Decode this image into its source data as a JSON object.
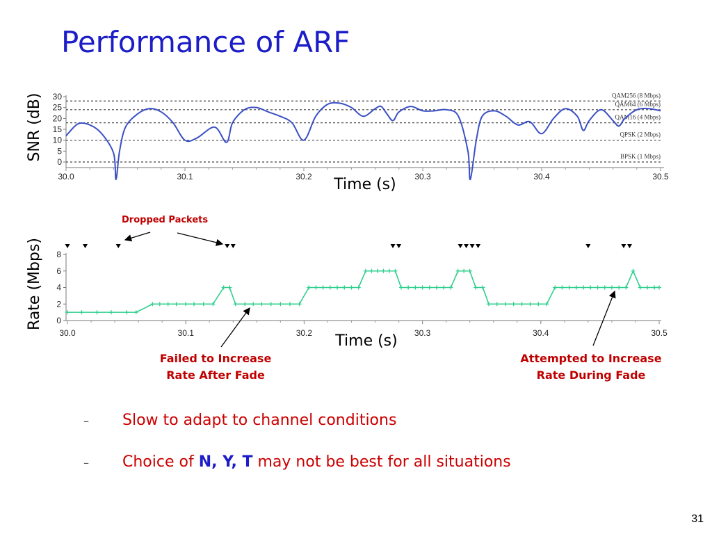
{
  "slide": {
    "title": "Performance of ARF",
    "page_number": "31",
    "bullets": [
      {
        "text": "Slow to adapt to channel conditions"
      },
      {
        "prefix": "Choice of ",
        "n": "N",
        "sep1": ", ",
        "y": "Y",
        "sep2": ", ",
        "t": "T",
        "suffix": " may not be best for all situations"
      }
    ]
  },
  "annotations": {
    "dropped": "Dropped Packets",
    "failed_line1": "Failed to Increase",
    "failed_line2": "Rate After Fade",
    "attempted_line1": "Attempted to Increase",
    "attempted_line2": "Rate During Fade"
  },
  "chart_data": [
    {
      "type": "line",
      "ylabel": "SNR (dB)",
      "xlabel": "Time (s)",
      "xlim": [
        30.0,
        30.5
      ],
      "ylim": [
        0,
        30
      ],
      "x_ticks": [
        "30.0",
        "30.1",
        "30.2",
        "30.3",
        "30.4",
        "30.5"
      ],
      "y_ticks": [
        "0",
        "5",
        "10",
        "15",
        "20",
        "25",
        "30"
      ],
      "series_color": "#3a4fc4",
      "thresholds": [
        {
          "label": "QAM256 (8 Mbps)",
          "value": 28
        },
        {
          "label": "QAM64 (6 Mbps)",
          "value": 24
        },
        {
          "label": "QAM16 (4 Mbps)",
          "value": 18
        },
        {
          "label": "QPSK (2 Mbps)",
          "value": 10
        },
        {
          "label": "BPSK (1 Mbps)",
          "value": 0
        }
      ],
      "points": [
        [
          30.0,
          12
        ],
        [
          30.01,
          17.5
        ],
        [
          30.02,
          17
        ],
        [
          30.03,
          13
        ],
        [
          30.04,
          4
        ],
        [
          30.042,
          -8
        ],
        [
          30.045,
          5
        ],
        [
          30.05,
          16
        ],
        [
          30.06,
          22
        ],
        [
          30.07,
          24.5
        ],
        [
          30.08,
          23
        ],
        [
          30.09,
          18
        ],
        [
          30.1,
          10
        ],
        [
          30.11,
          11
        ],
        [
          30.125,
          16
        ],
        [
          30.135,
          9
        ],
        [
          30.14,
          18
        ],
        [
          30.15,
          24
        ],
        [
          30.16,
          25
        ],
        [
          30.17,
          23
        ],
        [
          30.18,
          21
        ],
        [
          30.19,
          18
        ],
        [
          30.2,
          10
        ],
        [
          30.21,
          21
        ],
        [
          30.22,
          26.5
        ],
        [
          30.23,
          27
        ],
        [
          30.24,
          25
        ],
        [
          30.25,
          21
        ],
        [
          30.26,
          24.5
        ],
        [
          30.265,
          25.5
        ],
        [
          30.27,
          22
        ],
        [
          30.275,
          19
        ],
        [
          30.28,
          23
        ],
        [
          30.29,
          25.5
        ],
        [
          30.3,
          23.5
        ],
        [
          30.31,
          23.5
        ],
        [
          30.32,
          24
        ],
        [
          30.33,
          21
        ],
        [
          30.338,
          5
        ],
        [
          30.34,
          -8
        ],
        [
          30.345,
          10
        ],
        [
          30.35,
          21
        ],
        [
          30.36,
          23.5
        ],
        [
          30.37,
          21
        ],
        [
          30.38,
          17
        ],
        [
          30.39,
          18.5
        ],
        [
          30.4,
          13
        ],
        [
          30.41,
          20
        ],
        [
          30.42,
          24.5
        ],
        [
          30.43,
          21
        ],
        [
          30.435,
          14.5
        ],
        [
          30.44,
          19
        ],
        [
          30.45,
          24
        ],
        [
          30.46,
          19
        ],
        [
          30.465,
          16.5
        ],
        [
          30.47,
          20
        ],
        [
          30.48,
          24
        ],
        [
          30.49,
          24.5
        ],
        [
          30.5,
          23.5
        ]
      ]
    },
    {
      "type": "line",
      "ylabel": "Rate (Mbps)",
      "xlabel": "Time (s)",
      "xlim": [
        30.0,
        30.5
      ],
      "ylim": [
        0,
        8
      ],
      "x_ticks": [
        "30.0",
        "30.1",
        "30.2",
        "30.3",
        "30.4",
        "30.5"
      ],
      "y_ticks": [
        "0",
        "2",
        "4",
        "6",
        "8"
      ],
      "series_color": "#2ecf8e",
      "steps": [
        [
          30.0,
          1
        ],
        [
          30.012,
          1
        ],
        [
          30.025,
          1
        ],
        [
          30.037,
          1
        ],
        [
          30.05,
          1
        ],
        [
          30.058,
          1
        ],
        [
          30.072,
          2
        ],
        [
          30.078,
          2
        ],
        [
          30.085,
          2
        ],
        [
          30.092,
          2
        ],
        [
          30.1,
          2
        ],
        [
          30.107,
          2
        ],
        [
          30.115,
          2
        ],
        [
          30.123,
          2
        ],
        [
          30.132,
          4
        ],
        [
          30.137,
          4
        ],
        [
          30.142,
          2
        ],
        [
          30.15,
          2
        ],
        [
          30.157,
          2
        ],
        [
          30.164,
          2
        ],
        [
          30.172,
          2
        ],
        [
          30.18,
          2
        ],
        [
          30.188,
          2
        ],
        [
          30.196,
          2
        ],
        [
          30.204,
          4
        ],
        [
          30.21,
          4
        ],
        [
          30.216,
          4
        ],
        [
          30.222,
          4
        ],
        [
          30.228,
          4
        ],
        [
          30.234,
          4
        ],
        [
          30.24,
          4
        ],
        [
          30.246,
          4
        ],
        [
          30.252,
          6
        ],
        [
          30.257,
          6
        ],
        [
          30.262,
          6
        ],
        [
          30.267,
          6
        ],
        [
          30.272,
          6
        ],
        [
          30.277,
          6
        ],
        [
          30.282,
          4
        ],
        [
          30.288,
          4
        ],
        [
          30.294,
          4
        ],
        [
          30.3,
          4
        ],
        [
          30.306,
          4
        ],
        [
          30.312,
          4
        ],
        [
          30.318,
          4
        ],
        [
          30.324,
          4
        ],
        [
          30.33,
          6
        ],
        [
          30.335,
          6
        ],
        [
          30.34,
          6
        ],
        [
          30.345,
          4
        ],
        [
          30.351,
          4
        ],
        [
          30.356,
          2
        ],
        [
          30.363,
          2
        ],
        [
          30.37,
          2
        ],
        [
          30.377,
          2
        ],
        [
          30.384,
          2
        ],
        [
          30.391,
          2
        ],
        [
          30.398,
          2
        ],
        [
          30.405,
          2
        ],
        [
          30.412,
          4
        ],
        [
          30.418,
          4
        ],
        [
          30.424,
          4
        ],
        [
          30.43,
          4
        ],
        [
          30.436,
          4
        ],
        [
          30.442,
          4
        ],
        [
          30.448,
          4
        ],
        [
          30.454,
          4
        ],
        [
          30.46,
          4
        ],
        [
          30.466,
          4
        ],
        [
          30.472,
          4
        ],
        [
          30.478,
          6
        ],
        [
          30.484,
          4
        ],
        [
          30.49,
          4
        ],
        [
          30.496,
          4
        ],
        [
          30.5,
          4
        ]
      ],
      "dropped_packets": [
        30.0,
        30.015,
        30.043,
        30.135,
        30.14,
        30.275,
        30.28,
        30.332,
        30.337,
        30.342,
        30.347,
        30.44,
        30.47,
        30.475
      ]
    }
  ]
}
